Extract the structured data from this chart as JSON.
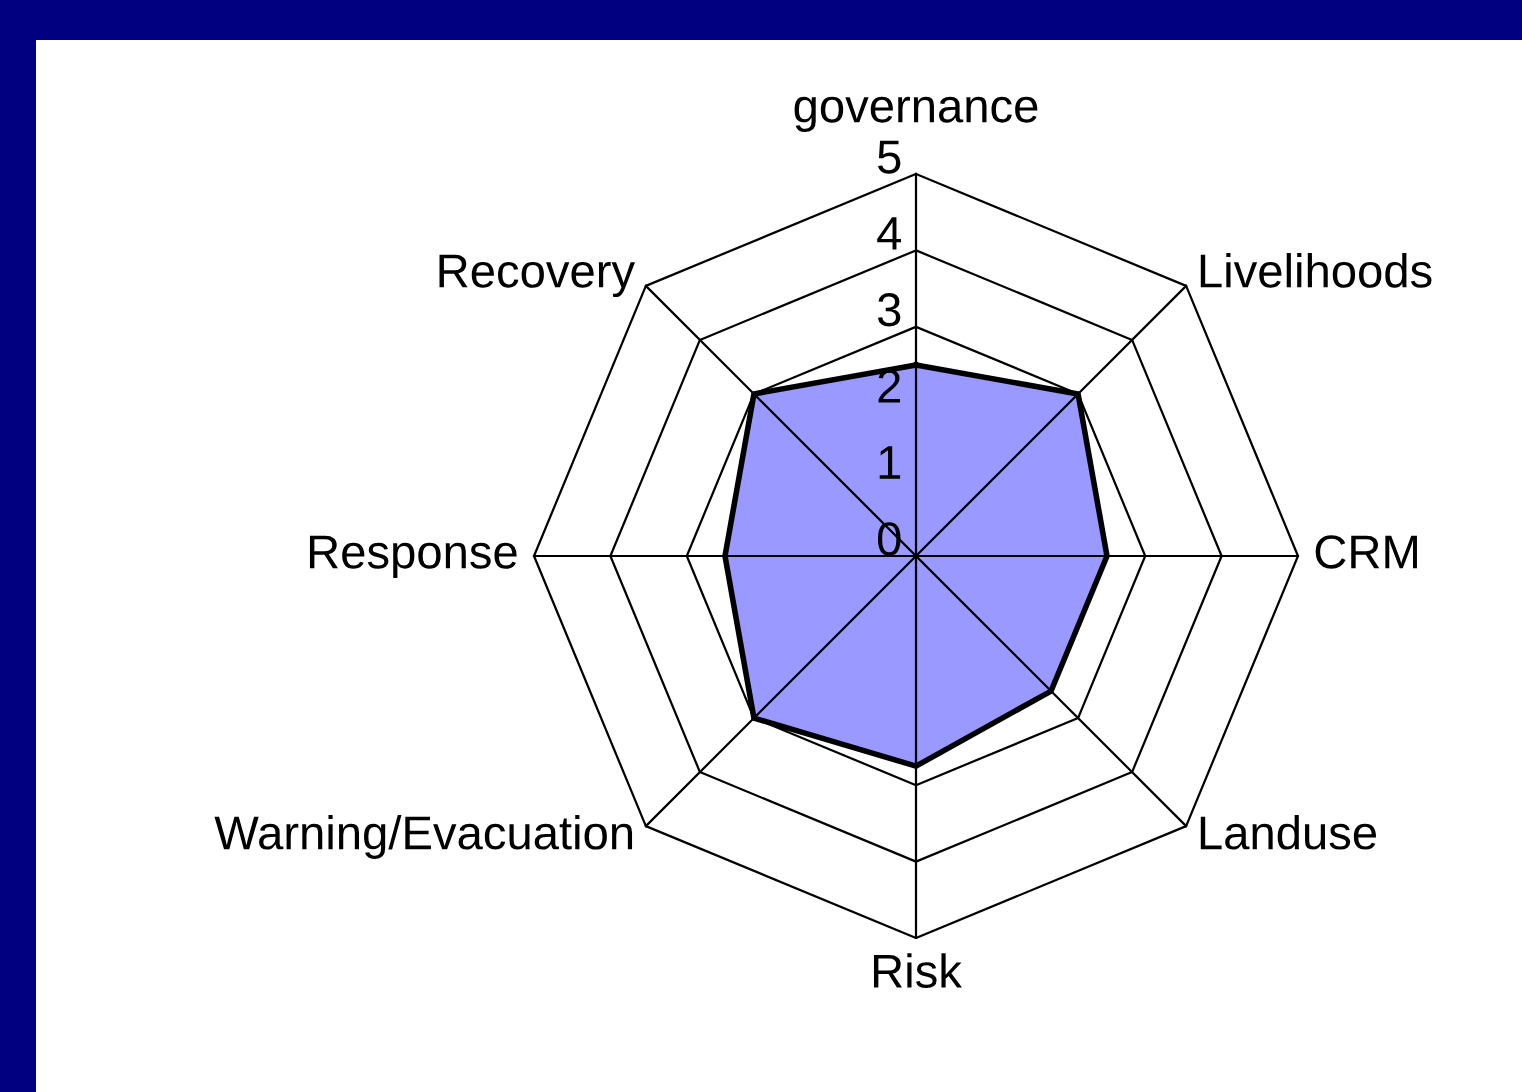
{
  "chart_data": {
    "type": "radar",
    "categories": [
      "governance",
      "Livelihoods",
      "CRM",
      "Landuse",
      "Risk",
      "Warning/Evacuation",
      "Response",
      "Recovery"
    ],
    "series": [
      {
        "color": "#9999ff",
        "values": [
          2.5,
          3,
          2.5,
          2.5,
          2.75,
          3,
          2.5,
          3
        ]
      }
    ],
    "ylim": [
      0,
      5
    ],
    "yticks": [
      0,
      1,
      2,
      3,
      4,
      5
    ],
    "grid": true
  }
}
